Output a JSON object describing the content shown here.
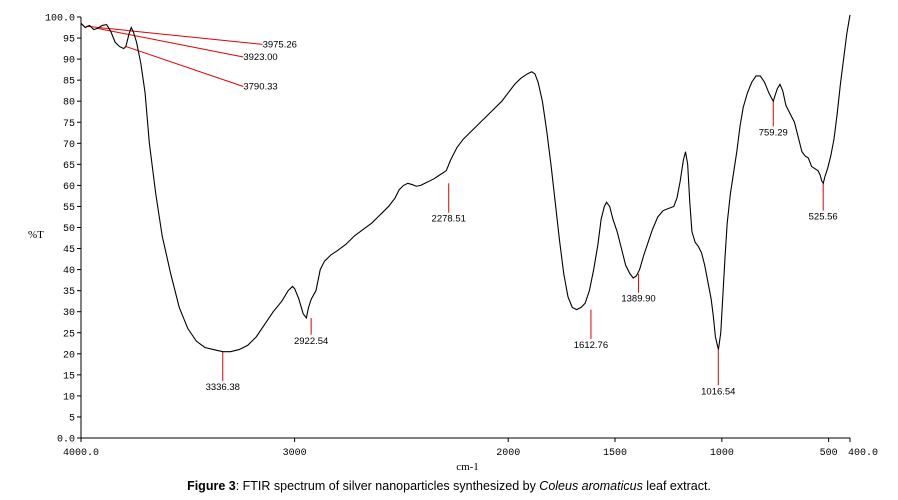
{
  "chart_data": {
    "type": "line",
    "title": "",
    "xlabel": "cm-1",
    "ylabel": "%T",
    "xlim": [
      4000,
      400
    ],
    "ylim": [
      0,
      100
    ],
    "x_reversed": true,
    "grid": false,
    "series": [
      {
        "color": "#000000",
        "points": [
          [
            4000,
            98.5
          ],
          [
            3980,
            97.5
          ],
          [
            3960,
            98.0
          ],
          [
            3940,
            97.0
          ],
          [
            3923,
            97.3
          ],
          [
            3900,
            98.0
          ],
          [
            3880,
            98.2
          ],
          [
            3860,
            96.5
          ],
          [
            3840,
            94.0
          ],
          [
            3820,
            93.0
          ],
          [
            3800,
            92.5
          ],
          [
            3790,
            93.0
          ],
          [
            3775,
            96.0
          ],
          [
            3765,
            97.5
          ],
          [
            3755,
            96.5
          ],
          [
            3740,
            94.0
          ],
          [
            3720,
            89.0
          ],
          [
            3700,
            82.0
          ],
          [
            3680,
            70.0
          ],
          [
            3650,
            58.0
          ],
          [
            3620,
            48.0
          ],
          [
            3580,
            39.0
          ],
          [
            3540,
            31.0
          ],
          [
            3500,
            26.0
          ],
          [
            3460,
            23.0
          ],
          [
            3420,
            21.5
          ],
          [
            3380,
            21.0
          ],
          [
            3336,
            20.5
          ],
          [
            3300,
            20.5
          ],
          [
            3260,
            21.0
          ],
          [
            3220,
            22.0
          ],
          [
            3180,
            24.0
          ],
          [
            3140,
            27.0
          ],
          [
            3100,
            30.0
          ],
          [
            3060,
            32.5
          ],
          [
            3030,
            35.0
          ],
          [
            3010,
            36.0
          ],
          [
            3000,
            35.5
          ],
          [
            2980,
            33.0
          ],
          [
            2960,
            29.5
          ],
          [
            2945,
            28.5
          ],
          [
            2935,
            31.0
          ],
          [
            2922,
            33.0
          ],
          [
            2900,
            35.0
          ],
          [
            2880,
            40.0
          ],
          [
            2860,
            42.0
          ],
          [
            2830,
            43.5
          ],
          [
            2800,
            44.5
          ],
          [
            2760,
            46.0
          ],
          [
            2720,
            48.0
          ],
          [
            2680,
            49.5
          ],
          [
            2640,
            51.0
          ],
          [
            2600,
            53.0
          ],
          [
            2560,
            55.0
          ],
          [
            2530,
            57.0
          ],
          [
            2510,
            59.0
          ],
          [
            2490,
            60.0
          ],
          [
            2470,
            60.5
          ],
          [
            2450,
            60.2
          ],
          [
            2430,
            59.8
          ],
          [
            2410,
            60.0
          ],
          [
            2390,
            60.5
          ],
          [
            2370,
            61.0
          ],
          [
            2350,
            61.5
          ],
          [
            2320,
            62.5
          ],
          [
            2290,
            63.5
          ],
          [
            2270,
            66.0
          ],
          [
            2240,
            69.0
          ],
          [
            2210,
            71.0
          ],
          [
            2180,
            72.5
          ],
          [
            2150,
            74.0
          ],
          [
            2120,
            75.5
          ],
          [
            2090,
            77.0
          ],
          [
            2060,
            78.5
          ],
          [
            2030,
            80.0
          ],
          [
            2000,
            82.0
          ],
          [
            1970,
            84.0
          ],
          [
            1940,
            85.5
          ],
          [
            1910,
            86.5
          ],
          [
            1890,
            87.0
          ],
          [
            1875,
            86.5
          ],
          [
            1860,
            84.5
          ],
          [
            1840,
            80.0
          ],
          [
            1820,
            73.0
          ],
          [
            1800,
            65.0
          ],
          [
            1780,
            56.0
          ],
          [
            1760,
            47.0
          ],
          [
            1740,
            39.0
          ],
          [
            1720,
            33.5
          ],
          [
            1700,
            31.0
          ],
          [
            1680,
            30.5
          ],
          [
            1660,
            31.0
          ],
          [
            1640,
            32.0
          ],
          [
            1620,
            35.0
          ],
          [
            1600,
            40.0
          ],
          [
            1580,
            46.0
          ],
          [
            1565,
            52.0
          ],
          [
            1550,
            55.0
          ],
          [
            1540,
            56.0
          ],
          [
            1525,
            55.0
          ],
          [
            1510,
            52.0
          ],
          [
            1490,
            49.0
          ],
          [
            1470,
            45.0
          ],
          [
            1450,
            41.0
          ],
          [
            1430,
            39.0
          ],
          [
            1415,
            38.0
          ],
          [
            1400,
            38.5
          ],
          [
            1385,
            40.0
          ],
          [
            1365,
            43.5
          ],
          [
            1345,
            46.5
          ],
          [
            1325,
            49.5
          ],
          [
            1300,
            52.5
          ],
          [
            1275,
            54.0
          ],
          [
            1250,
            54.5
          ],
          [
            1225,
            55.0
          ],
          [
            1210,
            57.0
          ],
          [
            1195,
            61.0
          ],
          [
            1180,
            66.0
          ],
          [
            1170,
            68.0
          ],
          [
            1160,
            65.0
          ],
          [
            1150,
            56.0
          ],
          [
            1140,
            49.0
          ],
          [
            1125,
            46.5
          ],
          [
            1110,
            45.5
          ],
          [
            1095,
            44.0
          ],
          [
            1080,
            41.0
          ],
          [
            1065,
            37.0
          ],
          [
            1050,
            33.0
          ],
          [
            1040,
            29.0
          ],
          [
            1030,
            24.0
          ],
          [
            1016,
            21.0
          ],
          [
            1005,
            25.0
          ],
          [
            995,
            34.0
          ],
          [
            985,
            43.0
          ],
          [
            975,
            51.0
          ],
          [
            960,
            58.0
          ],
          [
            945,
            63.0
          ],
          [
            930,
            68.0
          ],
          [
            915,
            74.0
          ],
          [
            900,
            78.5
          ],
          [
            880,
            82.0
          ],
          [
            860,
            84.5
          ],
          [
            840,
            86.0
          ],
          [
            820,
            86.0
          ],
          [
            800,
            84.5
          ],
          [
            780,
            82.0
          ],
          [
            765,
            80.5
          ],
          [
            759,
            80.0
          ],
          [
            750,
            81.5
          ],
          [
            740,
            83.0
          ],
          [
            728,
            84.0
          ],
          [
            715,
            82.5
          ],
          [
            700,
            79.0
          ],
          [
            680,
            77.0
          ],
          [
            660,
            75.0
          ],
          [
            640,
            71.0
          ],
          [
            625,
            68.0
          ],
          [
            610,
            67.0
          ],
          [
            595,
            66.5
          ],
          [
            580,
            64.5
          ],
          [
            565,
            64.0
          ],
          [
            550,
            63.5
          ],
          [
            540,
            62.5
          ],
          [
            532,
            61.0
          ],
          [
            525,
            60.5
          ],
          [
            518,
            62.0
          ],
          [
            505,
            64.0
          ],
          [
            490,
            67.0
          ],
          [
            475,
            71.0
          ],
          [
            460,
            77.0
          ],
          [
            445,
            84.0
          ],
          [
            430,
            90.0
          ],
          [
            415,
            96.0
          ],
          [
            400,
            100.5
          ]
        ]
      }
    ],
    "x_ticks": [
      {
        "value": 4000,
        "label": "4000.0"
      },
      {
        "value": 3000,
        "label": "3000"
      },
      {
        "value": 2000,
        "label": "2000"
      },
      {
        "value": 1500,
        "label": "1500"
      },
      {
        "value": 1000,
        "label": "1000"
      },
      {
        "value": 500,
        "label": "500"
      },
      {
        "value": 400,
        "label": "400.0"
      }
    ],
    "y_ticks": [
      {
        "value": 0,
        "label": "0.0"
      },
      {
        "value": 5,
        "label": "5"
      },
      {
        "value": 10,
        "label": "10"
      },
      {
        "value": 15,
        "label": "15"
      },
      {
        "value": 20,
        "label": "20"
      },
      {
        "value": 25,
        "label": "25"
      },
      {
        "value": 30,
        "label": "30"
      },
      {
        "value": 35,
        "label": "35"
      },
      {
        "value": 40,
        "label": "40"
      },
      {
        "value": 45,
        "label": "45"
      },
      {
        "value": 50,
        "label": "50"
      },
      {
        "value": 55,
        "label": "55"
      },
      {
        "value": 60,
        "label": "60"
      },
      {
        "value": 65,
        "label": "65"
      },
      {
        "value": 70,
        "label": "70"
      },
      {
        "value": 75,
        "label": "75"
      },
      {
        "value": 80,
        "label": "80"
      },
      {
        "value": 85,
        "label": "85"
      },
      {
        "value": 90,
        "label": "90"
      },
      {
        "value": 95,
        "label": "95"
      },
      {
        "value": 100,
        "label": "100.0"
      }
    ],
    "annotations": [
      {
        "label": "3975.26",
        "x": 3975.26,
        "y": 97.8,
        "label_x": 3150,
        "label_y": 93.5
      },
      {
        "label": "3923.00",
        "x": 3923.0,
        "y": 97.3,
        "label_x": 3240,
        "label_y": 90.5
      },
      {
        "label": "3790.33",
        "x": 3790.33,
        "y": 93.0,
        "label_x": 3240,
        "label_y": 83.5
      },
      {
        "label": "3336.38",
        "x": 3336.38,
        "y": 20.5,
        "label_x": 3336.38,
        "label_y": 14.0
      },
      {
        "label": "2922.54",
        "x": 2922.54,
        "y": 28.5,
        "label_x": 2922.54,
        "label_y": 25.0
      },
      {
        "label": "2278.51",
        "x": 2278.51,
        "y": 60.5,
        "label_x": 2278.51,
        "label_y": 54.0
      },
      {
        "label": "1612.76",
        "x": 1612.76,
        "y": 30.5,
        "label_x": 1612.76,
        "label_y": 24.0
      },
      {
        "label": "1389.90",
        "x": 1389.9,
        "y": 39.0,
        "label_x": 1389.9,
        "label_y": 35.0
      },
      {
        "label": "1016.54",
        "x": 1016.54,
        "y": 21.0,
        "label_x": 1016.54,
        "label_y": 13.0
      },
      {
        "label": "759.29",
        "x": 759.29,
        "y": 80.0,
        "label_x": 759.29,
        "label_y": 74.5
      },
      {
        "label": "525.56",
        "x": 525.56,
        "y": 60.5,
        "label_x": 525.56,
        "label_y": 54.5
      }
    ],
    "annotation_color": "#e00000"
  },
  "caption": {
    "figure": "Figure 3",
    "text_before": ": FTIR spectrum of silver nanoparticles synthesized by ",
    "species": "Coleus aromaticus",
    "text_after": " leaf extract."
  }
}
